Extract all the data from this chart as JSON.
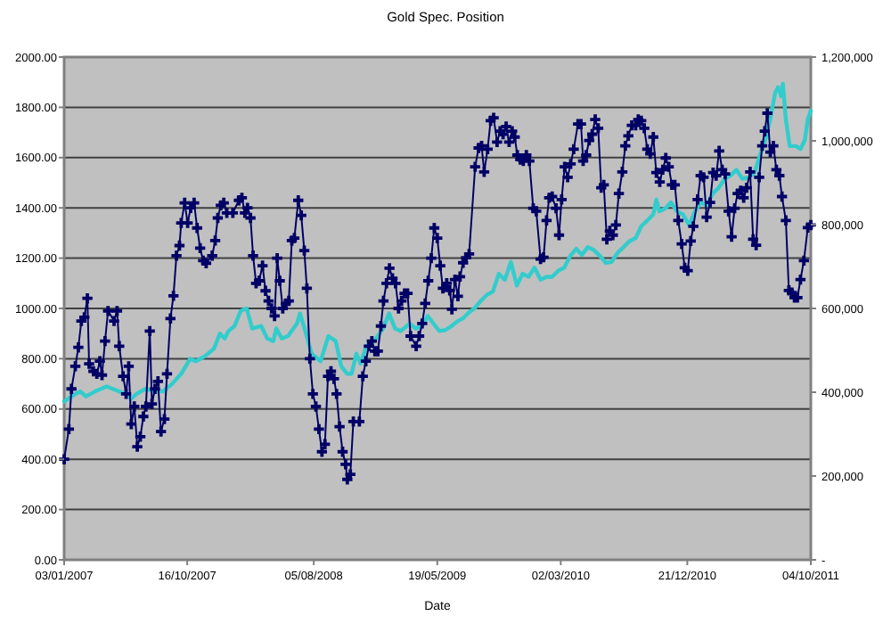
{
  "chart_data": {
    "type": "line",
    "title": "Gold Spec. Position",
    "xlabel": "Date",
    "xlim": [
      "2007-01-03",
      "2011-10-04"
    ],
    "xticks": [
      {
        "value": "2007-01-03",
        "label": "03/01/2007"
      },
      {
        "value": "2007-10-16",
        "label": "16/10/2007"
      },
      {
        "value": "2008-08-05",
        "label": "05/08/2008"
      },
      {
        "value": "2009-05-19",
        "label": "19/05/2009"
      },
      {
        "value": "2010-03-02",
        "label": "02/03/2010"
      },
      {
        "value": "2010-12-21",
        "label": "21/12/2010"
      },
      {
        "value": "2011-10-04",
        "label": "04/10/2011"
      }
    ],
    "ylim": [
      0,
      2000
    ],
    "yticks": [
      {
        "value": 0,
        "label": "0.00"
      },
      {
        "value": 200,
        "label": "200.00"
      },
      {
        "value": 400,
        "label": "400.00"
      },
      {
        "value": 600,
        "label": "600.00"
      },
      {
        "value": 800,
        "label": "800.00"
      },
      {
        "value": 1000,
        "label": "1000.00"
      },
      {
        "value": 1200,
        "label": "1200.00"
      },
      {
        "value": 1400,
        "label": "1400.00"
      },
      {
        "value": 1600,
        "label": "1600.00"
      },
      {
        "value": 1800,
        "label": "1800.00"
      },
      {
        "value": 2000,
        "label": "2000.00"
      }
    ],
    "y2lim": [
      0,
      1200000
    ],
    "y2ticks": [
      {
        "value": 0,
        "label": "-"
      },
      {
        "value": 200000,
        "label": "200,000"
      },
      {
        "value": 400000,
        "label": "400,000"
      },
      {
        "value": 600000,
        "label": "600,000"
      },
      {
        "value": 800000,
        "label": "800,000"
      },
      {
        "value": 1000000,
        "label": "1,000,000"
      },
      {
        "value": 1200000,
        "label": "1,200,000"
      }
    ],
    "grid": "y",
    "series": [
      {
        "color": "#33cccc",
        "marker": "none",
        "x": [
          "2007-01-03",
          "2007-01-20",
          "2007-02-09",
          "2007-02-23",
          "2007-03-16",
          "2007-04-12",
          "2007-05-10",
          "2007-05-27",
          "2007-06-07",
          "2007-06-20",
          "2007-07-11",
          "2007-08-01",
          "2007-08-21",
          "2007-09-11",
          "2007-10-02",
          "2007-10-23",
          "2007-11-05",
          "2007-11-26",
          "2007-12-17",
          "2007-12-31",
          "2008-01-11",
          "2008-01-20",
          "2008-02-03",
          "2008-02-17",
          "2008-03-02",
          "2008-03-15",
          "2008-04-05",
          "2008-04-19",
          "2008-05-03",
          "2008-05-10",
          "2008-05-23",
          "2008-06-06",
          "2008-06-27",
          "2008-07-04",
          "2008-07-18",
          "2008-07-31",
          "2008-08-21",
          "2008-09-08",
          "2008-09-25",
          "2008-10-08",
          "2008-10-22",
          "2008-11-01",
          "2008-11-12",
          "2008-11-22",
          "2008-12-05",
          "2008-12-23",
          "2009-01-13",
          "2009-01-27",
          "2009-02-10",
          "2009-02-23",
          "2009-03-16",
          "2009-03-30",
          "2009-04-13",
          "2009-04-27",
          "2009-05-10",
          "2009-05-24",
          "2009-06-07",
          "2009-06-21",
          "2009-07-05",
          "2009-07-18",
          "2009-08-01",
          "2009-08-15",
          "2009-08-29",
          "2009-09-12",
          "2009-09-25",
          "2009-10-09",
          "2009-10-23",
          "2009-11-06",
          "2009-11-20",
          "2009-12-03",
          "2009-12-17",
          "2009-12-31",
          "2010-01-14",
          "2010-01-28",
          "2010-02-10",
          "2010-02-24",
          "2010-03-10",
          "2010-03-24",
          "2010-04-07",
          "2010-04-20",
          "2010-05-04",
          "2010-05-18",
          "2010-06-01",
          "2010-06-15",
          "2010-06-28",
          "2010-07-12",
          "2010-07-26",
          "2010-08-09",
          "2010-08-23",
          "2010-09-05",
          "2010-09-19",
          "2010-10-03",
          "2010-10-10",
          "2010-10-17",
          "2010-10-31",
          "2010-11-13",
          "2010-11-27",
          "2010-12-11",
          "2010-12-25",
          "2011-01-08",
          "2011-01-21",
          "2011-02-04",
          "2011-02-18",
          "2011-03-04",
          "2011-03-18",
          "2011-03-31",
          "2011-04-14",
          "2011-04-28",
          "2011-05-12",
          "2011-05-26",
          "2011-06-08",
          "2011-06-22",
          "2011-07-03",
          "2011-07-13",
          "2011-07-20",
          "2011-07-27",
          "2011-07-31",
          "2011-08-07",
          "2011-08-16",
          "2011-08-30",
          "2011-09-10",
          "2011-09-20",
          "2011-09-27",
          "2011-10-04"
        ],
        "values": [
          630,
          650,
          670,
          650,
          670,
          690,
          670,
          660,
          640,
          660,
          680,
          670,
          670,
          700,
          740,
          800,
          790,
          810,
          840,
          900,
          880,
          910,
          930,
          990,
          1000,
          920,
          930,
          880,
          870,
          920,
          880,
          890,
          940,
          980,
          900,
          820,
          790,
          890,
          870,
          770,
          740,
          740,
          820,
          780,
          850,
          870,
          920,
          980,
          920,
          910,
          940,
          920,
          930,
          970,
          940,
          910,
          914,
          930,
          949,
          961,
          985,
          1003,
          1032,
          1055,
          1067,
          1138,
          1114,
          1185,
          1091,
          1138,
          1126,
          1162,
          1114,
          1126,
          1126,
          1150,
          1162,
          1209,
          1237,
          1213,
          1244,
          1232,
          1209,
          1181,
          1185,
          1221,
          1244,
          1268,
          1280,
          1327,
          1350,
          1374,
          1433,
          1386,
          1398,
          1422,
          1386,
          1374,
          1332,
          1386,
          1422,
          1410,
          1457,
          1480,
          1516,
          1528,
          1551,
          1516,
          1521,
          1539,
          1610,
          1681,
          1764,
          1857,
          1880,
          1844,
          1894,
          1752,
          1646,
          1646,
          1634,
          1669,
          1752,
          1787
        ]
      },
      {
        "color": "#000066",
        "axis": "y2",
        "marker": "cross",
        "x": [
          "2007-01-03",
          "2007-01-14",
          "2007-01-20",
          "2007-01-29",
          "2007-02-05",
          "2007-02-12",
          "2007-02-19",
          "2007-02-26",
          "2007-03-02",
          "2007-03-12",
          "2007-03-20",
          "2007-03-27",
          "2007-04-01",
          "2007-04-08",
          "2007-04-15",
          "2007-04-29",
          "2007-05-06",
          "2007-05-11",
          "2007-05-20",
          "2007-05-27",
          "2007-06-02",
          "2007-06-08",
          "2007-06-15",
          "2007-06-22",
          "2007-06-29",
          "2007-07-06",
          "2007-07-12",
          "2007-07-21",
          "2007-07-26",
          "2007-08-02",
          "2007-08-09",
          "2007-08-16",
          "2007-08-24",
          "2007-08-30",
          "2007-09-07",
          "2007-09-14",
          "2007-09-21",
          "2007-09-28",
          "2007-10-02",
          "2007-10-10",
          "2007-10-17",
          "2007-10-24",
          "2007-11-01",
          "2007-11-08",
          "2007-11-15",
          "2007-11-22",
          "2007-11-29",
          "2007-12-13",
          "2007-12-20",
          "2007-12-26",
          "2008-01-02",
          "2008-01-09",
          "2008-01-16",
          "2008-01-30",
          "2008-02-13",
          "2008-02-20",
          "2008-02-27",
          "2008-03-04",
          "2008-03-11",
          "2008-03-17",
          "2008-03-24",
          "2008-03-31",
          "2008-04-08",
          "2008-04-15",
          "2008-04-22",
          "2008-04-29",
          "2008-05-06",
          "2008-05-12",
          "2008-05-18",
          "2008-05-25",
          "2008-06-01",
          "2008-06-08",
          "2008-06-15",
          "2008-06-21",
          "2008-06-30",
          "2008-07-07",
          "2008-07-14",
          "2008-07-20",
          "2008-07-27",
          "2008-08-03",
          "2008-08-10",
          "2008-08-17",
          "2008-08-24",
          "2008-08-31",
          "2008-09-07",
          "2008-09-14",
          "2008-09-21",
          "2008-09-27",
          "2008-10-04",
          "2008-10-11",
          "2008-10-18",
          "2008-10-22",
          "2008-10-29",
          "2008-11-05",
          "2008-11-19",
          "2008-11-27",
          "2008-12-04",
          "2008-12-11",
          "2008-12-18",
          "2008-12-25",
          "2009-01-01",
          "2009-01-08",
          "2009-01-14",
          "2009-01-21",
          "2009-01-28",
          "2009-02-04",
          "2009-02-11",
          "2009-02-18",
          "2009-02-25",
          "2009-03-04",
          "2009-03-11",
          "2009-03-18",
          "2009-03-31",
          "2009-04-07",
          "2009-04-14",
          "2009-04-21",
          "2009-04-28",
          "2009-05-05",
          "2009-05-12",
          "2009-05-19",
          "2009-05-26",
          "2009-06-01",
          "2009-06-10",
          "2009-06-17",
          "2009-06-22",
          "2009-06-29",
          "2009-07-06",
          "2009-07-11",
          "2009-07-18",
          "2009-07-25",
          "2009-08-01",
          "2009-08-15",
          "2009-08-23",
          "2009-08-30",
          "2009-09-05",
          "2009-09-13",
          "2009-09-20",
          "2009-09-27",
          "2009-10-05",
          "2009-10-12",
          "2009-10-19",
          "2009-10-26",
          "2009-11-02",
          "2009-11-09",
          "2009-11-15",
          "2009-11-21",
          "2009-11-28",
          "2009-12-05",
          "2009-12-12",
          "2009-12-19",
          "2009-12-28",
          "2010-01-04",
          "2010-01-14",
          "2010-01-21",
          "2010-01-28",
          "2010-02-03",
          "2010-02-10",
          "2010-02-19",
          "2010-02-26",
          "2010-03-04",
          "2010-03-11",
          "2010-03-18",
          "2010-03-25",
          "2010-04-01",
          "2010-04-11",
          "2010-04-18",
          "2010-04-23",
          "2010-04-30",
          "2010-05-07",
          "2010-05-14",
          "2010-05-21",
          "2010-05-28",
          "2010-06-04",
          "2010-06-10",
          "2010-06-17",
          "2010-06-24",
          "2010-07-01",
          "2010-07-08",
          "2010-07-15",
          "2010-07-23",
          "2010-07-30",
          "2010-08-06",
          "2010-08-14",
          "2010-08-23",
          "2010-08-29",
          "2010-09-05",
          "2010-09-12",
          "2010-09-19",
          "2010-09-26",
          "2010-10-03",
          "2010-10-10",
          "2010-10-18",
          "2010-10-25",
          "2010-11-01",
          "2010-11-08",
          "2010-11-15",
          "2010-11-22",
          "2010-11-30",
          "2010-12-08",
          "2010-12-15",
          "2010-12-22",
          "2010-12-29",
          "2011-01-04",
          "2011-01-14",
          "2011-01-21",
          "2011-01-28",
          "2011-02-04",
          "2011-02-12",
          "2011-02-19",
          "2011-02-26",
          "2011-03-05",
          "2011-03-12",
          "2011-03-19",
          "2011-03-27",
          "2011-04-03",
          "2011-04-10",
          "2011-04-17",
          "2011-04-24",
          "2011-05-01",
          "2011-05-08",
          "2011-05-16",
          "2011-05-23",
          "2011-05-30",
          "2011-06-06",
          "2011-06-13",
          "2011-06-19",
          "2011-06-25",
          "2011-07-02",
          "2011-07-09",
          "2011-07-16",
          "2011-07-23",
          "2011-07-29",
          "2011-08-07",
          "2011-08-14",
          "2011-08-21",
          "2011-08-27",
          "2011-09-03",
          "2011-09-10",
          "2011-09-18",
          "2011-09-27",
          "2011-10-04"
        ],
        "values": [
          240000,
          312000,
          408000,
          462000,
          507000,
          570000,
          579000,
          624000,
          468000,
          450000,
          444000,
          474000,
          441000,
          522000,
          594000,
          570000,
          594000,
          510000,
          438000,
          396000,
          462000,
          324000,
          366000,
          270000,
          294000,
          342000,
          366000,
          546000,
          372000,
          408000,
          426000,
          306000,
          336000,
          444000,
          576000,
          630000,
          726000,
          750000,
          804000,
          852000,
          804000,
          840000,
          852000,
          792000,
          744000,
          714000,
          708000,
          726000,
          762000,
          816000,
          846000,
          852000,
          828000,
          828000,
          858000,
          864000,
          828000,
          840000,
          816000,
          726000,
          660000,
          666000,
          702000,
          642000,
          618000,
          600000,
          582000,
          720000,
          666000,
          600000,
          612000,
          618000,
          762000,
          768000,
          858000,
          822000,
          738000,
          648000,
          480000,
          396000,
          366000,
          312000,
          258000,
          276000,
          438000,
          450000,
          432000,
          396000,
          318000,
          258000,
          228000,
          192000,
          204000,
          330000,
          330000,
          438000,
          474000,
          510000,
          522000,
          498000,
          498000,
          558000,
          618000,
          660000,
          696000,
          672000,
          660000,
          600000,
          618000,
          636000,
          636000,
          534000,
          510000,
          534000,
          564000,
          612000,
          666000,
          720000,
          792000,
          768000,
          702000,
          648000,
          660000,
          643000,
          598000,
          669000,
          629000,
          676000,
          709000,
          721000,
          730000,
          938000,
          983000,
          988000,
          926000,
          980000,
          1048000,
          1055000,
          997000,
          1023000,
          1016000,
          1034000,
          997000,
          1023000,
          1009000,
          966000,
          955000,
          952000,
          966000,
          952000,
          839000,
          832000,
          718000,
          722000,
          810000,
          864000,
          867000,
          839000,
          775000,
          860000,
          938000,
          913000,
          945000,
          980000,
          1040000,
          1040000,
          952000,
          966000,
          1001000,
          1016000,
          1051000,
          1030000,
          888000,
          895000,
          765000,
          785000,
          775000,
          799000,
          874000,
          926000,
          988000,
          1012000,
          1037000,
          1037000,
          1051000,
          1048000,
          1030000,
          980000,
          969000,
          1009000,
          924000,
          902000,
          931000,
          959000,
          938000,
          895000,
          895000,
          810000,
          754000,
          697000,
          690000,
          761000,
          796000,
          860000,
          917000,
          913000,
          818000,
          853000,
          924000,
          917000,
          976000,
          931000,
          921000,
          832000,
          771000,
          839000,
          874000,
          881000,
          864000,
          888000,
          926000,
          765000,
          751000,
          913000,
          988000,
          1023000,
          1066000,
          973000,
          988000,
          931000,
          917000,
          867000,
          810000,
          643000,
          638000,
          626000,
          626000,
          669000,
          714000,
          793000,
          799000
        ]
      }
    ]
  }
}
